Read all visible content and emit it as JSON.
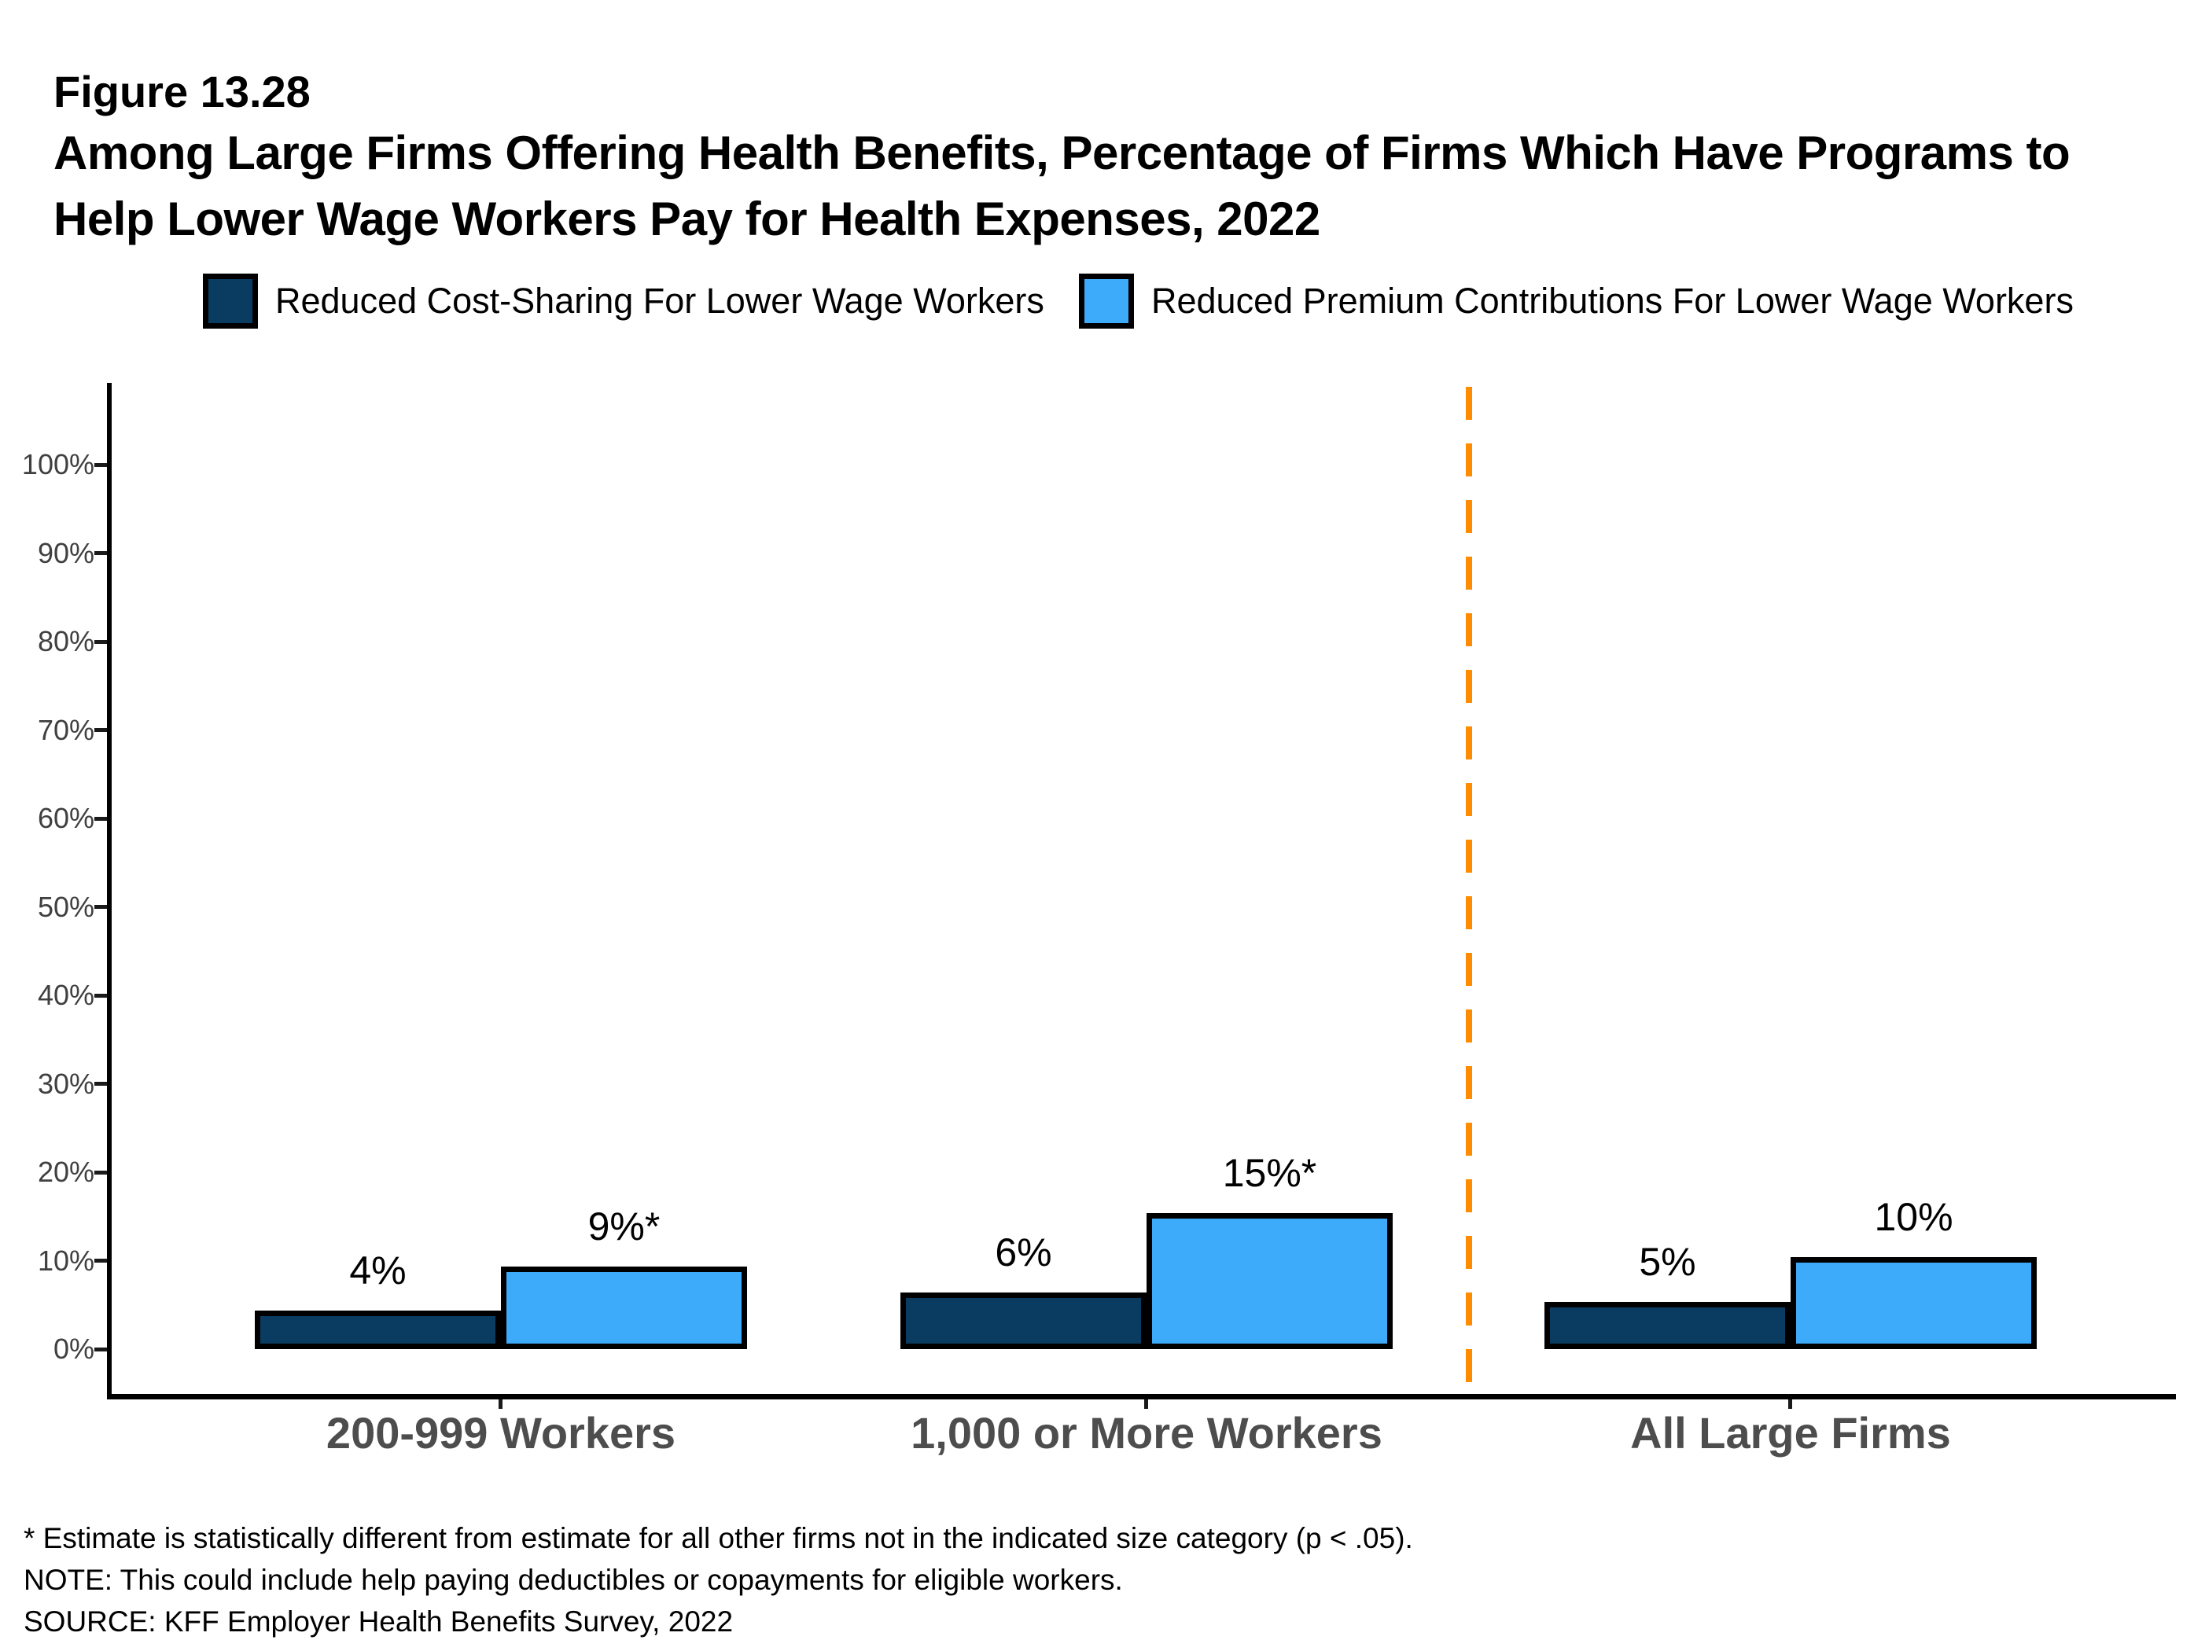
{
  "title": {
    "figure_label": "Figure 13.28",
    "lines": [
      "Among Large Firms Offering Health Benefits, Percentage of Firms Which Have Programs to",
      "Help Lower Wage Workers Pay for Health Expenses, 2022"
    ]
  },
  "chart_data": {
    "type": "bar",
    "categories": [
      "200-999 Workers",
      "1,000 or More Workers",
      "All Large Firms"
    ],
    "series": [
      {
        "name": "Reduced Cost-Sharing For Lower Wage Workers",
        "color": "#0A3C61",
        "values": [
          4,
          6,
          5
        ],
        "data_labels": [
          "4%",
          "6%",
          "5%"
        ]
      },
      {
        "name": "Reduced Premium Contributions For Lower Wage Workers",
        "color": "#3DAAFA",
        "values": [
          9,
          15,
          10
        ],
        "data_labels": [
          "9%*",
          "15%*",
          "10%"
        ]
      }
    ],
    "y_axis": {
      "ticks": [
        "0%",
        "10%",
        "20%",
        "30%",
        "40%",
        "50%",
        "60%",
        "70%",
        "80%",
        "90%",
        "100%"
      ],
      "min": 0,
      "max": 100
    },
    "xlabel": "",
    "ylabel": "",
    "grid": false,
    "legend_position": "top",
    "separator": {
      "between": [
        "1,000 or More Workers",
        "All Large Firms"
      ],
      "style": "dashed",
      "color": "#FF8C00"
    }
  },
  "footnotes": [
    "* Estimate is statistically different from estimate for all other firms not in the indicated size category (p < .05).",
    "NOTE: This could include help paying deductibles or copayments for eligible workers.",
    "SOURCE: KFF Employer Health Benefits Survey, 2022"
  ]
}
